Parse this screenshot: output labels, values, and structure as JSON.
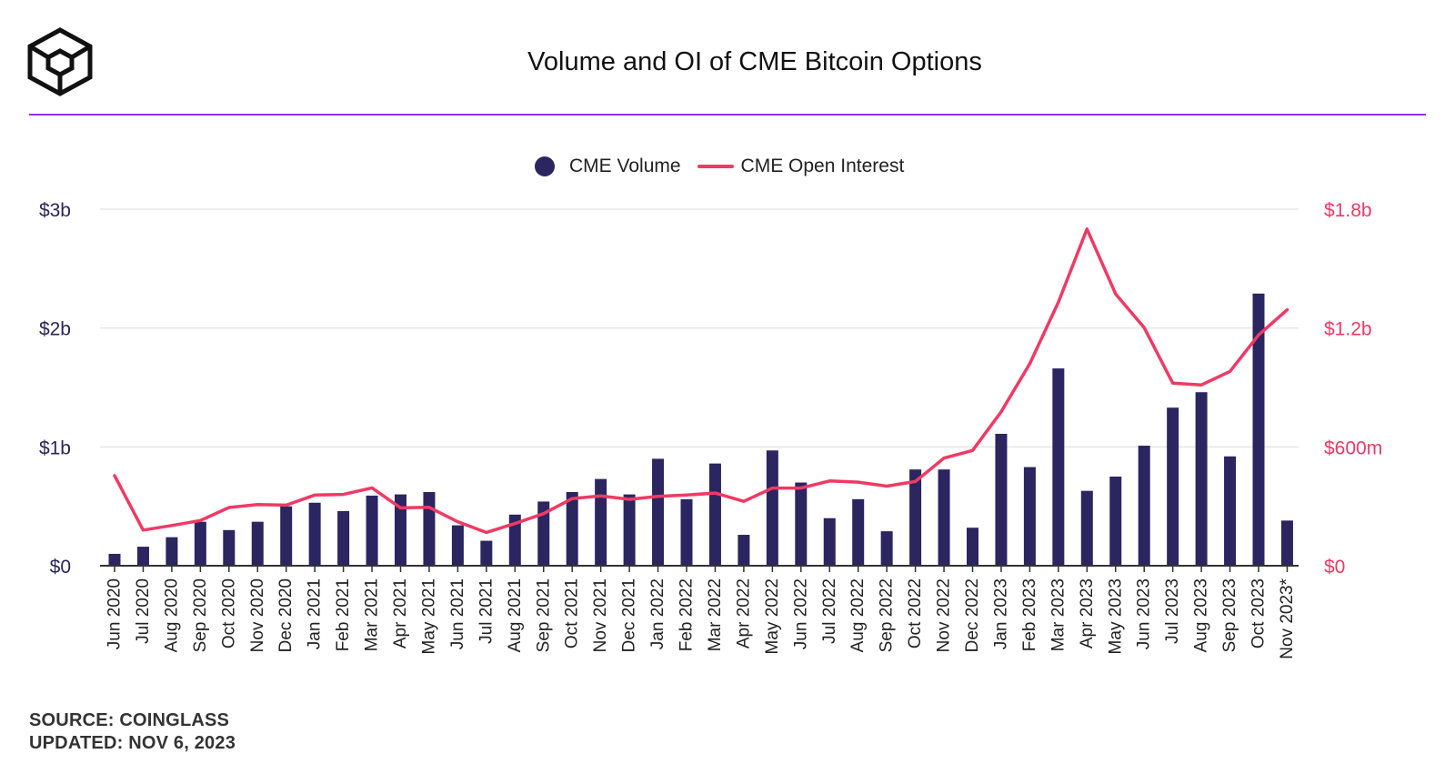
{
  "header": {
    "title": "Volume and OI of CME Bitcoin Options",
    "logo_icon": "cube-logo-icon",
    "accent_color": "#9b2df0"
  },
  "legend": {
    "volume_label": "CME Volume",
    "oi_label": "CME Open Interest"
  },
  "colors": {
    "volume": "#2b2560",
    "open_interest": "#ef3a64",
    "grid": "#e6e6e6",
    "axis": "#555555"
  },
  "footer": {
    "source": "SOURCE: COINGLASS",
    "updated": "UPDATED: NOV 6, 2023"
  },
  "chart_data": {
    "type": "bar",
    "title": "Volume and OI of CME Bitcoin Options",
    "categories": [
      "Jun 2020",
      "Jul 2020",
      "Aug 2020",
      "Sep 2020",
      "Oct 2020",
      "Nov 2020",
      "Dec 2020",
      "Jan 2021",
      "Feb 2021",
      "Mar 2021",
      "Apr 2021",
      "May 2021",
      "Jun 2021",
      "Jul 2021",
      "Aug 2021",
      "Sep 2021",
      "Oct 2021",
      "Nov 2021",
      "Dec 2021",
      "Jan 2022",
      "Feb 2022",
      "Mar 2022",
      "Apr 2022",
      "May 2022",
      "Jun 2022",
      "Jul 2022",
      "Aug 2022",
      "Sep 2022",
      "Oct 2022",
      "Nov 2022",
      "Dec 2022",
      "Jan 2023",
      "Feb 2023",
      "Mar 2023",
      "Apr 2023",
      "May 2023",
      "Jun 2023",
      "Jul 2023",
      "Aug 2023",
      "Sep 2023",
      "Oct 2023",
      "Nov 2023*"
    ],
    "series": [
      {
        "name": "CME Volume",
        "type": "bar",
        "axis": "left",
        "unit": "$b",
        "values": [
          0.1,
          0.16,
          0.24,
          0.37,
          0.3,
          0.37,
          0.5,
          0.53,
          0.46,
          0.59,
          0.6,
          0.62,
          0.34,
          0.21,
          0.43,
          0.54,
          0.62,
          0.73,
          0.6,
          0.9,
          0.56,
          0.86,
          0.26,
          0.97,
          0.7,
          0.4,
          0.56,
          0.29,
          0.81,
          0.81,
          0.32,
          1.11,
          0.83,
          1.66,
          0.63,
          0.75,
          1.01,
          1.33,
          1.46,
          0.92,
          2.29,
          0.38
        ]
      },
      {
        "name": "CME Open Interest",
        "type": "line",
        "axis": "right",
        "unit": "$m",
        "values": [
          455,
          180,
          203,
          228,
          294,
          309,
          306,
          357,
          360,
          393,
          292,
          295,
          222,
          168,
          213,
          263,
          339,
          352,
          335,
          350,
          357,
          367,
          325,
          392,
          392,
          428,
          422,
          402,
          425,
          543,
          582,
          777,
          1020,
          1330,
          1700,
          1372,
          1202,
          922,
          913,
          981,
          1165,
          1292
        ]
      }
    ],
    "y_left": {
      "ticks": [
        "$0",
        "$1b",
        "$2b",
        "$3b"
      ],
      "range": [
        0,
        3
      ]
    },
    "y_right": {
      "ticks": [
        "$0",
        "$600m",
        "$1.2b",
        "$1.8b"
      ],
      "range": [
        0,
        1800
      ]
    },
    "grid": true,
    "legend_position": "top-center"
  }
}
